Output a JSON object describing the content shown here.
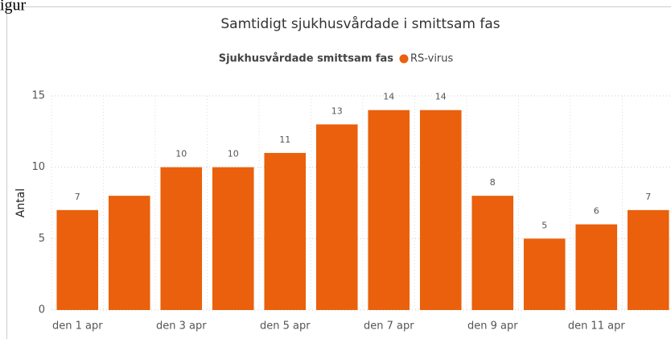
{
  "caption": "igur",
  "chart_data": {
    "type": "bar",
    "title": "Samtidigt sjukhusvårdade i smittsam fas",
    "legend_title": "Sjukhusvårdade smittsam fas",
    "ylabel": "Antal",
    "categories": [
      "den 1 apr",
      null,
      "den 3 apr",
      null,
      "den 5 apr",
      null,
      "den 7 apr",
      null,
      "den 9 apr",
      null,
      "den 11 apr",
      null
    ],
    "series": [
      {
        "name": "RS-virus",
        "color": "#ea600c",
        "values": [
          7,
          8,
          10,
          10,
          11,
          13,
          14,
          14,
          8,
          5,
          6,
          7
        ]
      }
    ],
    "value_labels": [
      "7",
      null,
      "10",
      "10",
      "11",
      "13",
      "14",
      "14",
      "8",
      "5",
      "6",
      "7"
    ],
    "ylim": [
      0,
      15
    ],
    "yticks": [
      0,
      5,
      10,
      15
    ],
    "grid": true
  }
}
